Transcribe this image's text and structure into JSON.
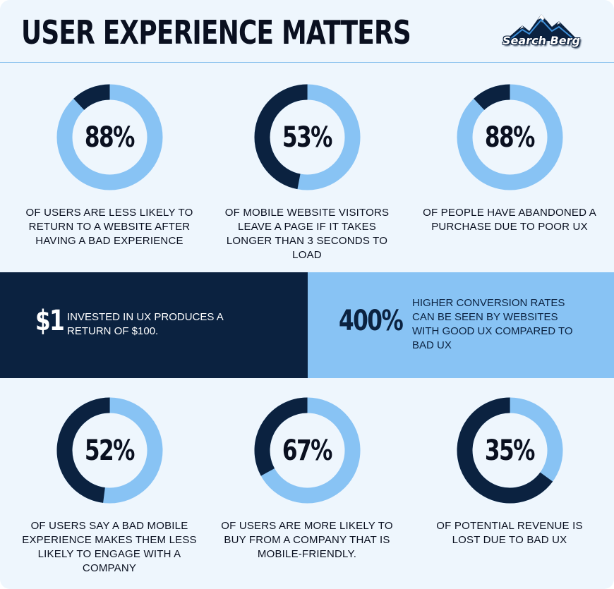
{
  "header": {
    "title": "USER EXPERIENCE MATTERS",
    "logo_text": "Search Berg"
  },
  "colors": {
    "dark_navy": "#0b2240",
    "light_blue": "#88c3f4",
    "background": "#eef6fd",
    "text": "#0a1020"
  },
  "chart_data": [
    {
      "type": "pie",
      "label": "88%",
      "value": 88,
      "caption": "OF USERS ARE LESS LIKELY TO RETURN TO A WEBSITE AFTER HAVING A BAD EXPERIENCE"
    },
    {
      "type": "pie",
      "label": "53%",
      "value": 53,
      "caption": "OF MOBILE WEBSITE VISITORS LEAVE A PAGE IF IT TAKES LONGER THAN 3 SECONDS TO LOAD"
    },
    {
      "type": "pie",
      "label": "88%",
      "value": 88,
      "caption": "OF PEOPLE HAVE ABANDONED A PURCHASE DUE TO POOR UX"
    },
    {
      "type": "pie",
      "label": "52%",
      "value": 52,
      "caption": "OF USERS SAY A BAD MOBILE EXPERIENCE MAKES THEM LESS LIKELY TO ENGAGE WITH A COMPANY"
    },
    {
      "type": "pie",
      "label": "67%",
      "value": 67,
      "caption": "OF USERS ARE MORE LIKELY TO BUY FROM A COMPANY THAT IS MOBILE-FRIENDLY."
    },
    {
      "type": "pie",
      "label": "35%",
      "value": 35,
      "caption": "OF POTENTIAL REVENUE IS LOST DUE TO BAD UX"
    }
  ],
  "band": {
    "left": {
      "value": "$1",
      "text": "INVESTED IN UX PRODUCES A RETURN OF $100."
    },
    "right": {
      "value": "400%",
      "text": "HIGHER CONVERSION RATES CAN BE SEEN BY WEBSITES WITH GOOD UX COMPARED TO BAD UX"
    }
  }
}
